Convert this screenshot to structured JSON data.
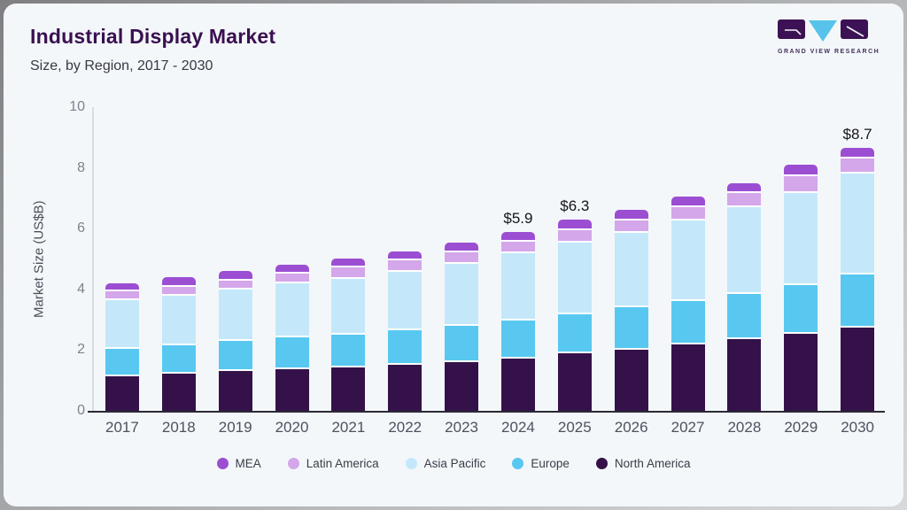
{
  "header": {
    "title": "Industrial Display Market",
    "subtitle": "Size, by Region, 2017 - 2030"
  },
  "logo": {
    "text": "GRAND VIEW RESEARCH",
    "mark_colors": {
      "blocks": "#3d1254",
      "triangle": "#57c3ea"
    }
  },
  "chart_data": {
    "type": "bar",
    "stacked": true,
    "title": "Industrial Display Market Size, by Region, 2017 - 2030",
    "xlabel": "",
    "ylabel": "Market Size (US$B)",
    "ylim": [
      0,
      10
    ],
    "yticks": [
      0,
      2,
      4,
      6,
      8,
      10
    ],
    "grid": false,
    "legend_position": "bottom",
    "categories": [
      "2017",
      "2018",
      "2019",
      "2020",
      "2021",
      "2022",
      "2023",
      "2024",
      "2025",
      "2026",
      "2027",
      "2028",
      "2029",
      "2030"
    ],
    "series": [
      {
        "name": "North America",
        "color": "#341249",
        "values": [
          1.2,
          1.28,
          1.36,
          1.43,
          1.48,
          1.58,
          1.67,
          1.78,
          1.95,
          2.08,
          2.24,
          2.42,
          2.6,
          2.81
        ]
      },
      {
        "name": "Europe",
        "color": "#58c8f1",
        "values": [
          0.9,
          0.95,
          1.0,
          1.05,
          1.08,
          1.12,
          1.18,
          1.26,
          1.3,
          1.38,
          1.45,
          1.5,
          1.61,
          1.75
        ]
      },
      {
        "name": "Asia Pacific",
        "color": "#c4e8f9",
        "values": [
          1.6,
          1.62,
          1.7,
          1.78,
          1.85,
          1.93,
          2.06,
          2.21,
          2.36,
          2.46,
          2.65,
          2.85,
          3.01,
          3.3
        ]
      },
      {
        "name": "Latin America",
        "color": "#d4a6ea",
        "values": [
          0.3,
          0.3,
          0.3,
          0.32,
          0.36,
          0.38,
          0.38,
          0.39,
          0.41,
          0.42,
          0.44,
          0.45,
          0.56,
          0.5
        ]
      },
      {
        "name": "MEA",
        "color": "#9c4ed3",
        "values": [
          0.2,
          0.25,
          0.26,
          0.24,
          0.26,
          0.24,
          0.26,
          0.26,
          0.28,
          0.29,
          0.28,
          0.29,
          0.32,
          0.29
        ]
      }
    ],
    "annotations": [
      {
        "category": "2024",
        "label": "$5.9"
      },
      {
        "category": "2025",
        "label": "$6.3"
      },
      {
        "category": "2030",
        "label": "$8.7"
      }
    ],
    "legend": [
      "MEA",
      "Latin America",
      "Asia Pacific",
      "Europe",
      "North America"
    ],
    "separator_color": "#ffffff"
  }
}
